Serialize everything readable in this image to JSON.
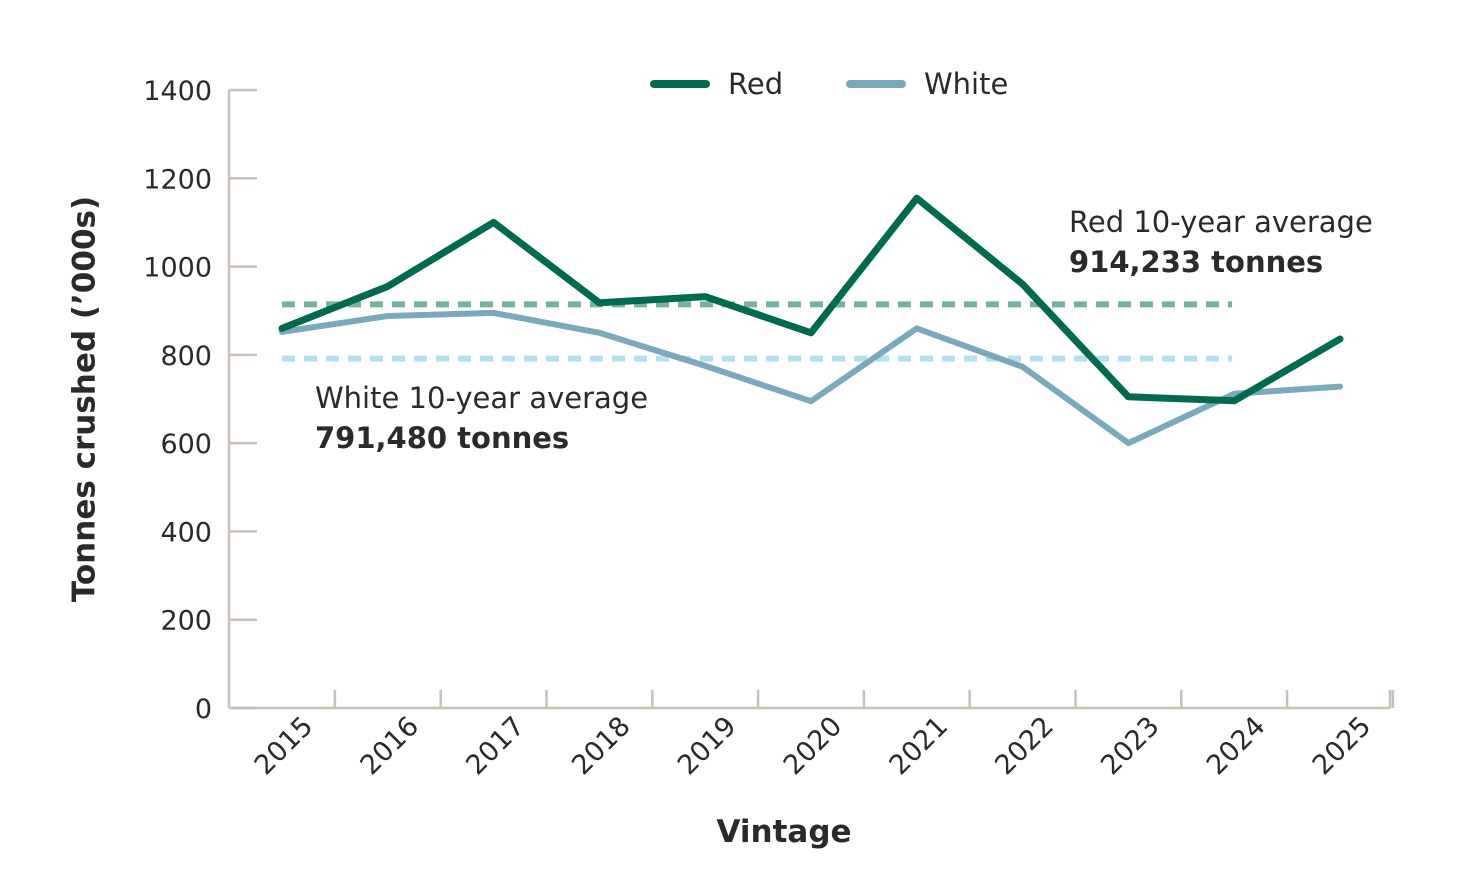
{
  "chart_data": {
    "type": "line",
    "title": "",
    "xlabel": "Vintage",
    "ylabel": "Tonnes crushed (’000s)",
    "ylim": [
      0,
      1400
    ],
    "yticks": [
      0,
      200,
      400,
      600,
      800,
      1000,
      1200,
      1400
    ],
    "categories": [
      "2015",
      "2016",
      "2017",
      "2018",
      "2019",
      "2020",
      "2021",
      "2022",
      "2023",
      "2024",
      "2025"
    ],
    "series": [
      {
        "name": "Red",
        "color": "#006a4e",
        "values": [
          860,
          955,
          1100,
          918,
          932,
          850,
          1155,
          960,
          705,
          696,
          836
        ]
      },
      {
        "name": "White",
        "color": "#7aa9bb",
        "values": [
          852,
          888,
          895,
          850,
          775,
          695,
          860,
          773,
          600,
          712,
          728
        ]
      }
    ],
    "averages": [
      {
        "series": "Red",
        "value": 914.233,
        "color": "#76b39d",
        "label": "Red 10-year average",
        "value_label": "914,233 tonnes"
      },
      {
        "series": "White",
        "value": 791.48,
        "color": "#b5e0f0",
        "label": "White 10-year average",
        "value_label": "791,480 tonnes"
      }
    ],
    "legend_position": "top-center",
    "grid": false
  }
}
